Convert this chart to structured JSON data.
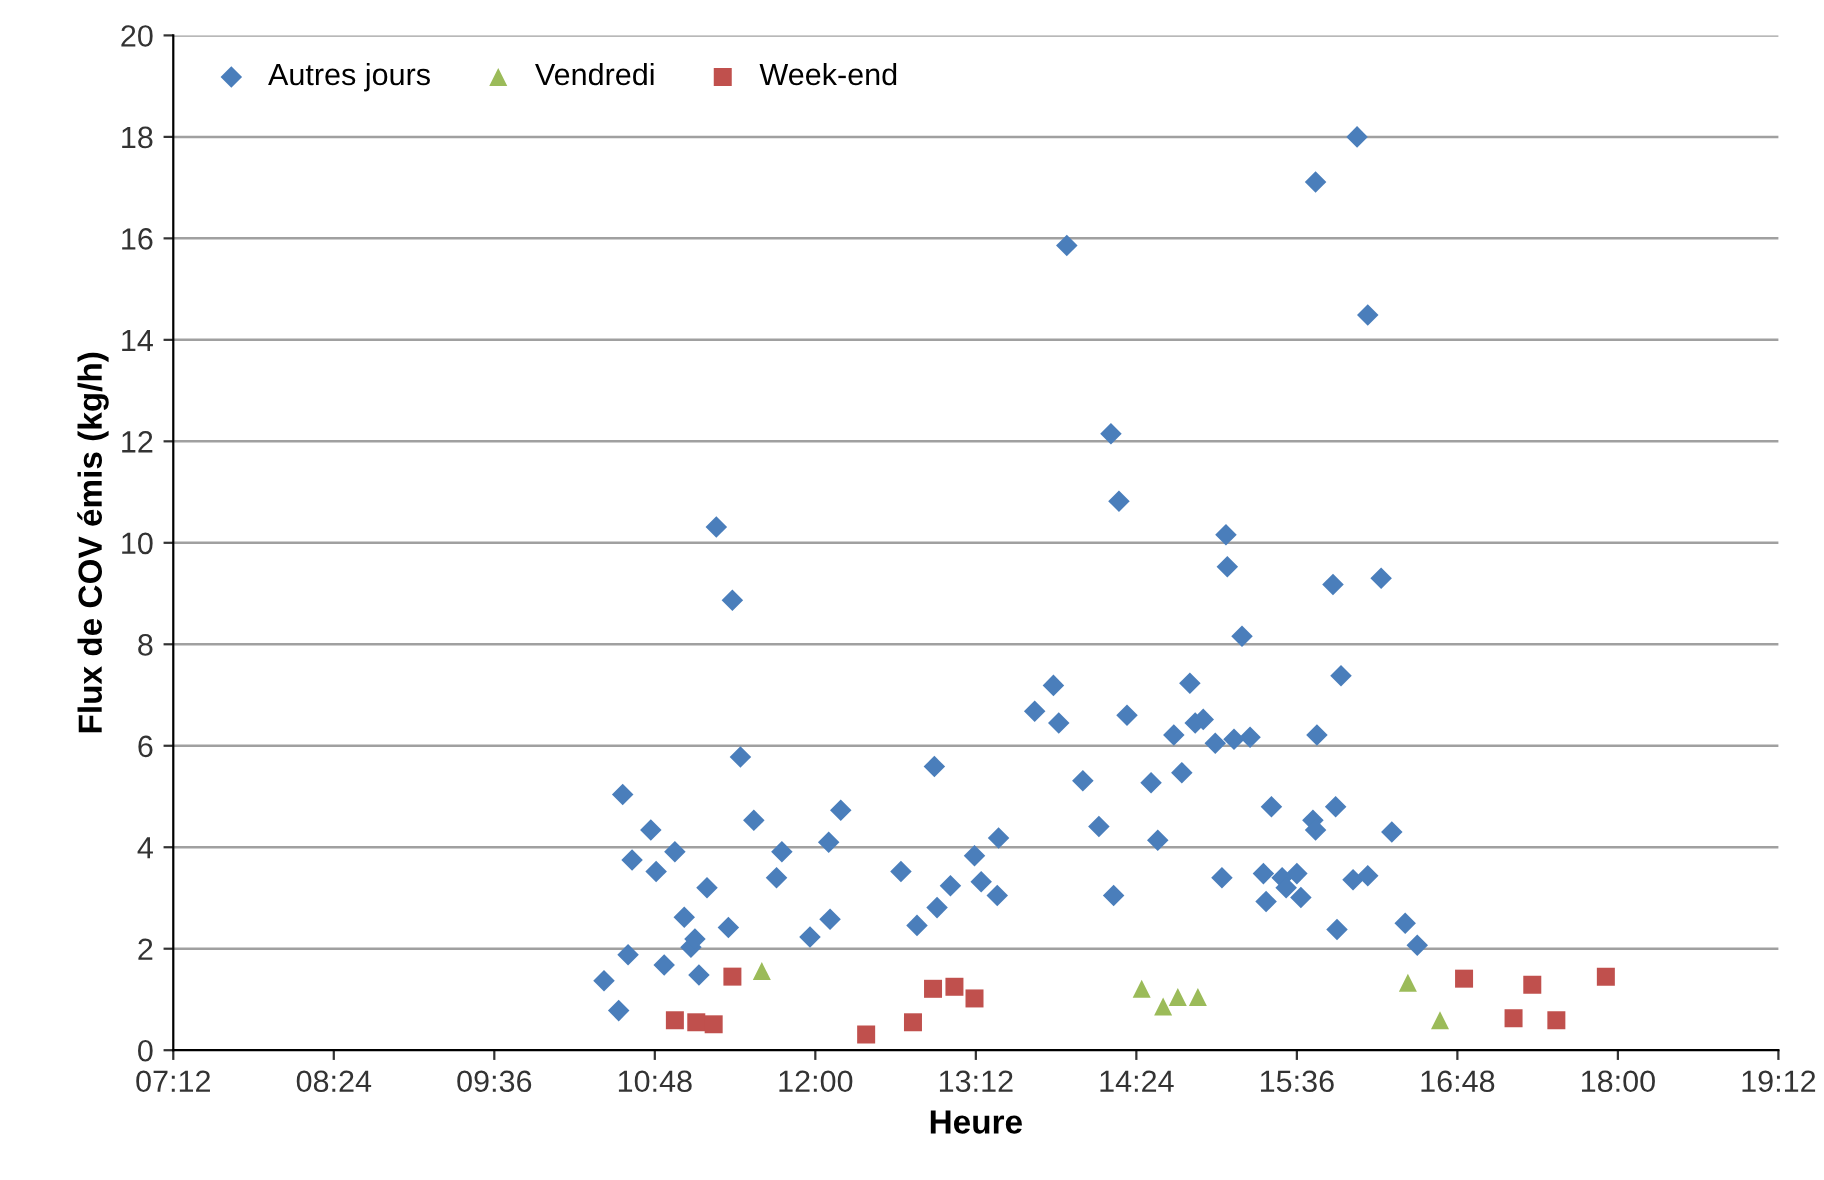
{
  "chart_data": {
    "type": "scatter",
    "xlabel": "Heure",
    "ylabel": "Flux de COV émis (kg/h)",
    "xlim": [
      7.2,
      19.2
    ],
    "xticks": [
      {
        "value": 7.2,
        "label": "07:12"
      },
      {
        "value": 8.4,
        "label": "08:24"
      },
      {
        "value": 9.6,
        "label": "09:36"
      },
      {
        "value": 10.8,
        "label": "10:48"
      },
      {
        "value": 12.0,
        "label": "12:00"
      },
      {
        "value": 13.2,
        "label": "13:12"
      },
      {
        "value": 14.4,
        "label": "14:24"
      },
      {
        "value": 15.6,
        "label": "15:36"
      },
      {
        "value": 16.8,
        "label": "16:48"
      },
      {
        "value": 18.0,
        "label": "18:00"
      },
      {
        "value": 19.2,
        "label": "19:12"
      }
    ],
    "ylim": [
      0,
      20
    ],
    "yticks": [
      0,
      2,
      4,
      6,
      8,
      10,
      12,
      14,
      16,
      18,
      20
    ],
    "grid": "y",
    "legend": "top left",
    "series": [
      {
        "name": "Autres jours",
        "color": "#4a7ebb",
        "marker": "diamond",
        "x": [
          10.42,
          10.53,
          10.56,
          10.6,
          10.63,
          10.77,
          10.81,
          10.87,
          10.95,
          11.02,
          11.07,
          11.1,
          11.13,
          11.19,
          11.26,
          11.35,
          11.38,
          11.44,
          11.54,
          11.71,
          11.75,
          11.96,
          12.1,
          12.11,
          12.19,
          12.64,
          12.76,
          12.89,
          12.91,
          13.01,
          13.19,
          13.24,
          13.36,
          13.37,
          13.64,
          13.78,
          13.82,
          13.88,
          14.0,
          14.12,
          14.21,
          14.23,
          14.27,
          14.33,
          14.51,
          14.56,
          14.68,
          14.74,
          14.8,
          14.84,
          14.9,
          14.99,
          15.04,
          15.07,
          15.08,
          15.13,
          15.19,
          15.25,
          15.35,
          15.37,
          15.41,
          15.49,
          15.52,
          15.6,
          15.63,
          15.74,
          15.72,
          15.74,
          15.75,
          15.89,
          15.9,
          15.87,
          15.93,
          16.02,
          16.05,
          16.13,
          16.13,
          16.23,
          16.31,
          16.41,
          16.5
        ],
        "values": [
          1.37,
          0.78,
          5.04,
          1.88,
          3.75,
          4.34,
          3.52,
          1.68,
          3.91,
          2.62,
          2.03,
          2.19,
          1.48,
          3.2,
          10.31,
          2.42,
          8.87,
          5.78,
          4.53,
          3.4,
          3.91,
          2.23,
          4.1,
          2.58,
          4.73,
          3.52,
          2.46,
          5.59,
          2.81,
          3.24,
          3.83,
          3.32,
          3.05,
          4.18,
          6.68,
          7.19,
          6.45,
          15.86,
          5.31,
          4.41,
          12.15,
          3.05,
          10.82,
          6.6,
          5.27,
          4.14,
          6.21,
          5.47,
          7.23,
          6.45,
          6.52,
          6.05,
          3.4,
          10.16,
          9.53,
          6.13,
          8.16,
          6.17,
          3.48,
          2.93,
          4.8,
          3.4,
          3.2,
          3.48,
          3.01,
          17.11,
          4.53,
          4.34,
          6.21,
          4.8,
          2.38,
          9.18,
          7.38,
          3.36,
          18.0,
          14.49,
          3.44,
          9.3,
          4.3,
          2.5,
          2.07
        ]
      },
      {
        "name": "Vendredi",
        "color": "#9bbb59",
        "marker": "triangle",
        "x": [
          11.6,
          14.44,
          14.6,
          14.71,
          14.86,
          16.43,
          16.67
        ],
        "values": [
          1.56,
          1.21,
          0.86,
          1.05,
          1.05,
          1.33,
          0.59
        ]
      },
      {
        "name": "Week-end",
        "color": "#c0504d",
        "marker": "square",
        "x": [
          10.95,
          11.11,
          11.24,
          11.38,
          12.38,
          12.73,
          12.88,
          13.04,
          13.19,
          16.85,
          17.22,
          17.36,
          17.54,
          17.91
        ],
        "values": [
          0.59,
          0.55,
          0.51,
          1.45,
          0.31,
          0.55,
          1.21,
          1.25,
          1.02,
          1.41,
          0.63,
          1.29,
          0.59,
          1.45
        ]
      }
    ]
  }
}
